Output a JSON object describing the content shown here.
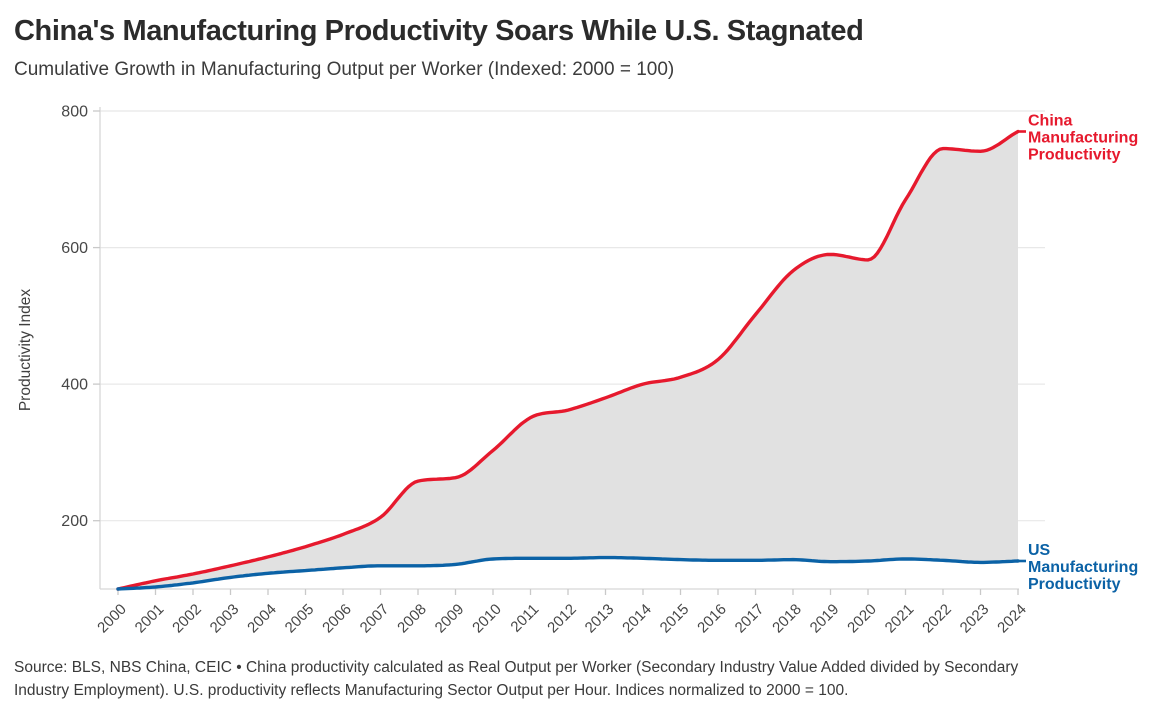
{
  "header": {
    "title": "China's Manufacturing Productivity Soars While U.S. Stagnated",
    "subtitle": "Cumulative Growth in Manufacturing Output per Worker (Indexed: 2000 = 100)"
  },
  "footer": {
    "source_line1": "Source: BLS, NBS China, CEIC • China productivity calculated as Real Output per Worker (Secondary Industry Value Added divided by Secondary",
    "source_line2": "Industry Employment). U.S. productivity reflects Manufacturing Sector Output per Hour. Indices normalized to 2000 = 100."
  },
  "chart_data": {
    "type": "area",
    "title": "China's Manufacturing Productivity Soars While U.S. Stagnated",
    "subtitle": "Cumulative Growth in Manufacturing Output per Worker (Indexed: 2000 = 100)",
    "xlabel": "",
    "ylabel": "Productivity Index",
    "ylim": [
      100,
      800
    ],
    "yticks": [
      200,
      400,
      600,
      800
    ],
    "grid": "horizontal",
    "legend_position": "line-end-labels",
    "fill_between_color": "#e1e1e1",
    "x": [
      2000,
      2001,
      2002,
      2003,
      2004,
      2005,
      2006,
      2007,
      2008,
      2009,
      2010,
      2011,
      2012,
      2013,
      2014,
      2015,
      2016,
      2017,
      2018,
      2019,
      2020,
      2021,
      2022,
      2023,
      2024
    ],
    "series": [
      {
        "name": "China Manufacturing Productivity",
        "color": "#e6192d",
        "values": [
          100,
          112,
          122,
          134,
          147,
          162,
          180,
          205,
          258,
          263,
          303,
          351,
          362,
          380,
          400,
          410,
          436,
          502,
          566,
          590,
          582,
          670,
          745,
          741,
          770
        ]
      },
      {
        "name": "US Manufacturing Productivity",
        "color": "#0b62a6",
        "values": [
          100,
          103,
          109,
          117,
          123,
          127,
          131,
          134,
          134,
          136,
          144,
          145,
          145,
          146,
          145,
          143,
          142,
          142,
          143,
          140,
          141,
          144,
          142,
          139,
          141
        ]
      }
    ]
  }
}
